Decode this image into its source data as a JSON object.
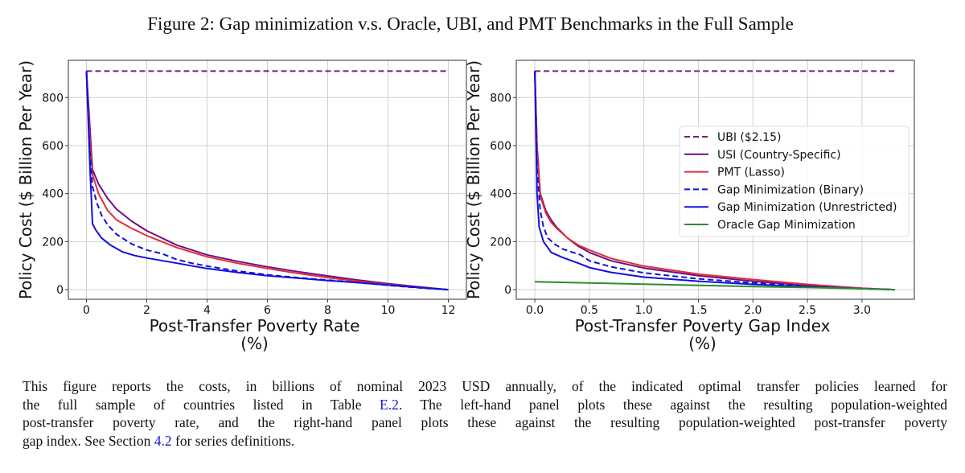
{
  "figure": {
    "title": "Figure 2: Gap minimization v.s. Oracle, UBI, and PMT Benchmarks in the Full Sample",
    "caption": {
      "lines": [
        [
          "This figure reports the costs, in billions of nominal 2023 USD annually, of the indicated optimal transfer policies learned for"
        ],
        [
          "the full sample of countries listed in Table ",
          {
            "link": "E.2"
          },
          ".  The left-hand panel plots these against the resulting population-weighted"
        ],
        [
          "post-transfer poverty rate, and the right-hand panel plots these against the resulting population-weighted post-transfer poverty"
        ],
        [
          "gap index. See Section ",
          {
            "link": "4.2"
          },
          " for series definitions."
        ]
      ]
    }
  },
  "colors": {
    "ubi": "#7b1a7b",
    "usi": "#6a0f8a",
    "pmt": "#e03030",
    "gap_binary": "#1010e0",
    "gap_unrestricted": "#1010e0",
    "oracle": "#2e8b2e",
    "grid": "#d0d0d0",
    "axis": "#555555"
  },
  "chart_data": [
    {
      "type": "line",
      "panel": "left",
      "title": "",
      "xlabel": "Post-Transfer Poverty Rate\n(%)",
      "xlabel_lines": [
        "Post-Transfer Poverty Rate",
        "(%)"
      ],
      "ylabel": "Policy Cost ($ Billion Per Year)",
      "xlim": [
        -0.6,
        12.6
      ],
      "ylim": [
        -40,
        955
      ],
      "xticks": [
        0,
        2,
        4,
        6,
        8,
        10,
        12
      ],
      "xtick_labels": [
        "0",
        "2",
        "4",
        "6",
        "8",
        "10",
        "12"
      ],
      "yticks": [
        0,
        200,
        400,
        600,
        800
      ],
      "ytick_labels": [
        "0",
        "200",
        "400",
        "600",
        "800"
      ],
      "grid": true,
      "legend": "none",
      "series": [
        {
          "key": "ubi",
          "name": "UBI ($2.15)",
          "dash": true,
          "x": [
            0,
            12
          ],
          "y": [
            910,
            910
          ]
        },
        {
          "key": "usi",
          "name": "USI (Country-Specific)",
          "dash": false,
          "x": [
            0,
            0.1,
            0.2,
            0.4,
            0.7,
            1.0,
            1.5,
            2.0,
            3.0,
            4.0,
            5.0,
            6.0,
            7.0,
            8.0,
            9.0,
            10.0,
            11.0,
            12.0
          ],
          "y": [
            910,
            700,
            500,
            440,
            380,
            335,
            285,
            245,
            185,
            145,
            118,
            95,
            75,
            57,
            40,
            25,
            12,
            0
          ]
        },
        {
          "key": "pmt",
          "name": "PMT (Lasso)",
          "dash": false,
          "x": [
            0,
            0.1,
            0.2,
            0.4,
            0.7,
            1.0,
            1.5,
            2.0,
            3.0,
            4.0,
            5.0,
            6.0,
            7.0,
            8.0,
            9.0,
            10.0,
            11.0,
            12.0
          ],
          "y": [
            910,
            650,
            480,
            400,
            330,
            290,
            255,
            225,
            175,
            137,
            110,
            88,
            68,
            50,
            35,
            21,
            10,
            0
          ]
        },
        {
          "key": "gap_binary",
          "name": "Gap Minimization (Binary)",
          "dash": true,
          "x": [
            0,
            0.1,
            0.2,
            0.35,
            0.5,
            0.7,
            1.0,
            1.5,
            2.0,
            2.5,
            3.0,
            3.5,
            4.0,
            5.0,
            6.0,
            7.0,
            8.0,
            9.0,
            10.0,
            11.0,
            12.0
          ],
          "y": [
            910,
            600,
            430,
            360,
            310,
            270,
            230,
            190,
            165,
            150,
            125,
            110,
            98,
            78,
            62,
            50,
            40,
            30,
            18,
            8,
            0
          ]
        },
        {
          "key": "gap_unrestricted",
          "name": "Gap Minimization (Unrestricted)",
          "dash": false,
          "x": [
            0,
            0.12,
            0.2,
            0.3,
            0.5,
            0.8,
            1.2,
            1.6,
            2.0,
            3.0,
            4.0,
            5.0,
            6.0,
            7.0,
            8.0,
            9.0,
            10.0,
            11.0,
            12.0
          ],
          "y": [
            910,
            500,
            275,
            250,
            215,
            185,
            157,
            142,
            132,
            110,
            88,
            72,
            58,
            48,
            38,
            29,
            19,
            9,
            0
          ]
        }
      ]
    },
    {
      "type": "line",
      "panel": "right",
      "title": "",
      "xlabel": "Post-Transfer Poverty Gap Index\n(%)",
      "xlabel_lines": [
        "Post-Transfer Poverty Gap Index",
        "(%)"
      ],
      "ylabel": "Policy Cost ($ Billion Per Year)",
      "xlim": [
        -0.17,
        3.48
      ],
      "ylim": [
        -40,
        955
      ],
      "xticks": [
        0.0,
        0.5,
        1.0,
        1.5,
        2.0,
        2.5,
        3.0
      ],
      "xtick_labels": [
        "0.0",
        "0.5",
        "1.0",
        "1.5",
        "2.0",
        "2.5",
        "3.0"
      ],
      "yticks": [
        0,
        200,
        400,
        600,
        800
      ],
      "ytick_labels": [
        "0",
        "200",
        "400",
        "600",
        "800"
      ],
      "grid": true,
      "legend": "center-right",
      "series": [
        {
          "key": "ubi",
          "name": "UBI ($2.15)",
          "dash": true,
          "x": [
            0,
            3.3
          ],
          "y": [
            910,
            910
          ]
        },
        {
          "key": "usi",
          "name": "USI (Country-Specific)",
          "dash": false,
          "x": [
            0,
            0.02,
            0.05,
            0.1,
            0.15,
            0.2,
            0.3,
            0.4,
            0.5,
            0.7,
            1.0,
            1.5,
            2.0,
            2.5,
            3.0,
            3.3
          ],
          "y": [
            910,
            600,
            400,
            330,
            290,
            260,
            215,
            180,
            155,
            120,
            90,
            58,
            35,
            18,
            5,
            0
          ]
        },
        {
          "key": "pmt",
          "name": "PMT (Lasso)",
          "dash": false,
          "x": [
            0,
            0.02,
            0.05,
            0.1,
            0.15,
            0.2,
            0.3,
            0.4,
            0.5,
            0.7,
            1.0,
            1.5,
            2.0,
            2.5,
            3.0,
            3.3
          ],
          "y": [
            910,
            580,
            390,
            320,
            280,
            255,
            215,
            185,
            165,
            130,
            98,
            65,
            42,
            22,
            6,
            0
          ]
        },
        {
          "key": "gap_binary",
          "name": "Gap Minimization (Binary)",
          "dash": true,
          "x": [
            0,
            0.02,
            0.05,
            0.08,
            0.12,
            0.18,
            0.25,
            0.35,
            0.42,
            0.5,
            0.7,
            1.0,
            1.5,
            2.0,
            2.5,
            3.0,
            3.3
          ],
          "y": [
            910,
            500,
            330,
            260,
            215,
            190,
            170,
            155,
            145,
            120,
            95,
            70,
            45,
            28,
            14,
            4,
            0
          ]
        },
        {
          "key": "gap_unrestricted",
          "name": "Gap Minimization (Unrestricted)",
          "dash": false,
          "x": [
            0,
            0.02,
            0.04,
            0.08,
            0.15,
            0.25,
            0.4,
            0.5,
            0.7,
            1.0,
            1.5,
            2.0,
            2.5,
            3.0,
            3.3
          ],
          "y": [
            910,
            400,
            260,
            200,
            155,
            135,
            110,
            92,
            72,
            52,
            35,
            22,
            12,
            4,
            0
          ]
        },
        {
          "key": "oracle",
          "name": "Oracle Gap Minimization",
          "dash": false,
          "x": [
            0,
            0.5,
            1.0,
            1.5,
            2.0,
            2.5,
            3.0,
            3.3
          ],
          "y": [
            33,
            28,
            23,
            18,
            13,
            9,
            4,
            0
          ]
        }
      ],
      "legend_entries": [
        {
          "key": "ubi",
          "label": "UBI ($2.15)",
          "dash": true
        },
        {
          "key": "usi",
          "label": "USI (Country-Specific)",
          "dash": false
        },
        {
          "key": "pmt",
          "label": "PMT (Lasso)",
          "dash": false
        },
        {
          "key": "gap_binary",
          "label": "Gap Minimization (Binary)",
          "dash": true
        },
        {
          "key": "gap_unrestricted",
          "label": "Gap Minimization (Unrestricted)",
          "dash": false
        },
        {
          "key": "oracle",
          "label": "Oracle Gap Minimization",
          "dash": false
        }
      ]
    }
  ]
}
